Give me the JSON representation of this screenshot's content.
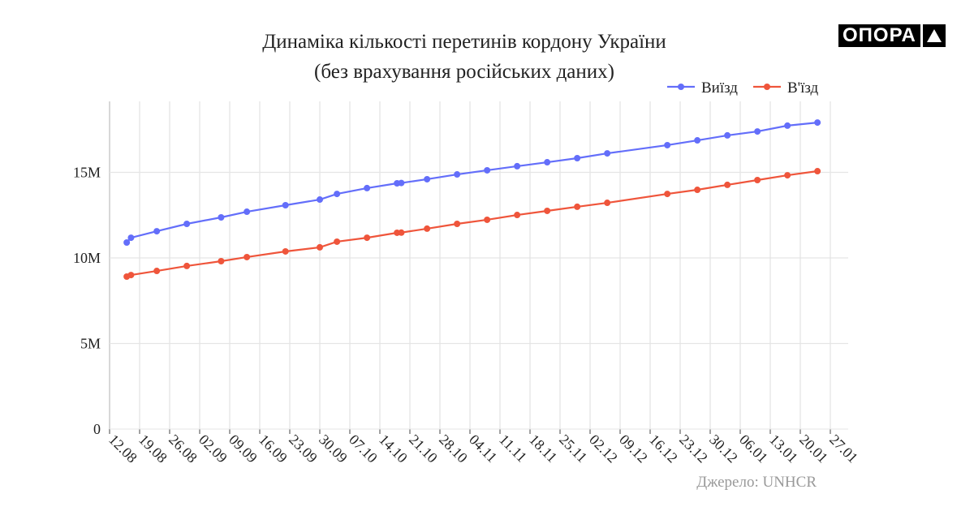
{
  "logo": {
    "text": "ОПОРА"
  },
  "chart_data": {
    "type": "line",
    "title": "Динаміка кількості перетинів кордону України",
    "subtitle": "(без врахування російських даних)",
    "source": "Джерело: UNHCR",
    "xlabel": "",
    "ylabel": "",
    "x_start": "2022-08-12",
    "x_range_days": [
      0,
      168
    ],
    "x_ticks": [
      "12.08",
      "19.08",
      "26.08",
      "02.09",
      "09.09",
      "16.09",
      "23.09",
      "30.09",
      "07.10",
      "14.10",
      "21.10",
      "28.10",
      "04.11",
      "11.11",
      "18.11",
      "25.11",
      "02.12",
      "09.12",
      "16.12",
      "23.12",
      "30.12",
      "06.01",
      "13.01",
      "20.01",
      "27.01"
    ],
    "y_ticks": [
      {
        "v": 0,
        "label": "0"
      },
      {
        "v": 5,
        "label": "5M"
      },
      {
        "v": 10,
        "label": "10M"
      },
      {
        "v": 15,
        "label": "15M"
      }
    ],
    "ylim": [
      0,
      19
    ],
    "y_unit": "millions",
    "grid": true,
    "legend": "top-right",
    "x_days": [
      4,
      5,
      11,
      18,
      26,
      32,
      41,
      49,
      53,
      60,
      67,
      68,
      74,
      81,
      88,
      95,
      102,
      109,
      116,
      130,
      137,
      144,
      151,
      158,
      165
    ],
    "series": [
      {
        "name": "Виїзд",
        "color": "#636efa",
        "values": [
          10.9,
          11.18,
          11.56,
          11.99,
          12.37,
          12.7,
          13.08,
          13.41,
          13.74,
          14.08,
          14.36,
          14.38,
          14.6,
          14.88,
          15.12,
          15.36,
          15.59,
          15.83,
          16.11,
          16.59,
          16.87,
          17.16,
          17.39,
          17.73,
          17.91
        ]
      },
      {
        "name": "В'їзд",
        "color": "#ef553b",
        "values": [
          8.91,
          9.0,
          9.24,
          9.53,
          9.81,
          10.05,
          10.38,
          10.62,
          10.95,
          11.18,
          11.47,
          11.48,
          11.71,
          11.99,
          12.23,
          12.51,
          12.75,
          12.99,
          13.22,
          13.74,
          13.98,
          14.27,
          14.55,
          14.83,
          15.07
        ]
      }
    ]
  }
}
